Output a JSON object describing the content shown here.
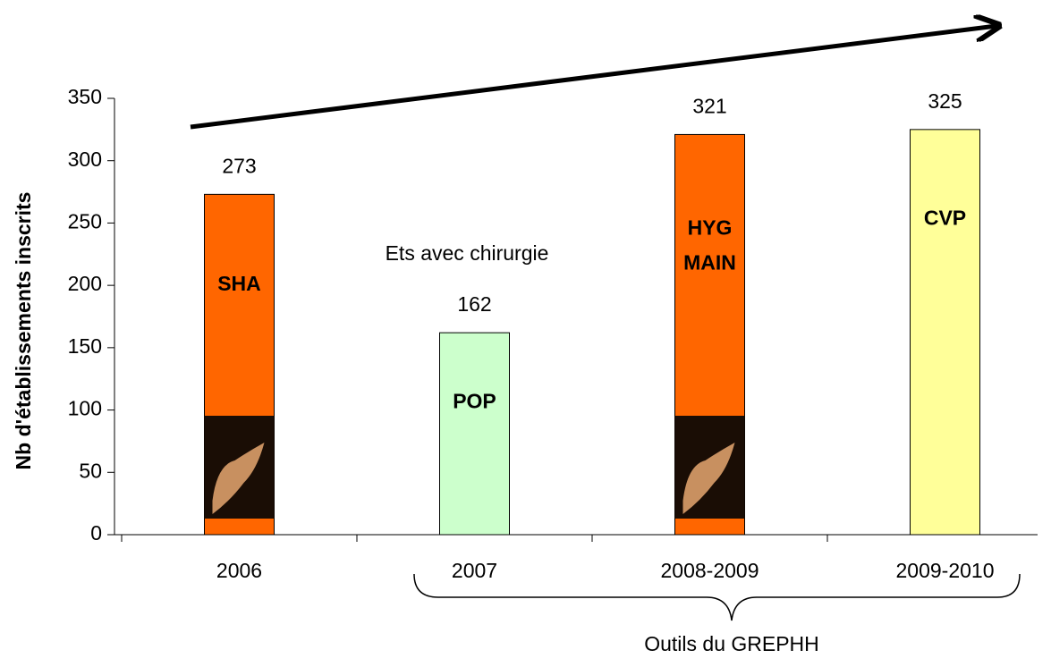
{
  "chart_data": {
    "type": "bar",
    "y_label": "Nb d'établissements inscrits",
    "categories": [
      "2006",
      "2007",
      "2008-2009",
      "2009-2010"
    ],
    "values": [
      273,
      162,
      321,
      325
    ],
    "colors": [
      "#ff6600",
      "#ccffcc",
      "#ff6600",
      "#ffff99"
    ],
    "bar_labels": [
      [
        "SHA"
      ],
      [
        "POP"
      ],
      [
        "HYG",
        "MAIN"
      ],
      [
        "CVP"
      ]
    ],
    "annotations": [
      "Ets avec chirurgie",
      "Outils du GREPHH"
    ],
    "ylim": [
      0,
      350
    ],
    "yticks": [
      0,
      50,
      100,
      150,
      200,
      250,
      300,
      350
    ]
  }
}
